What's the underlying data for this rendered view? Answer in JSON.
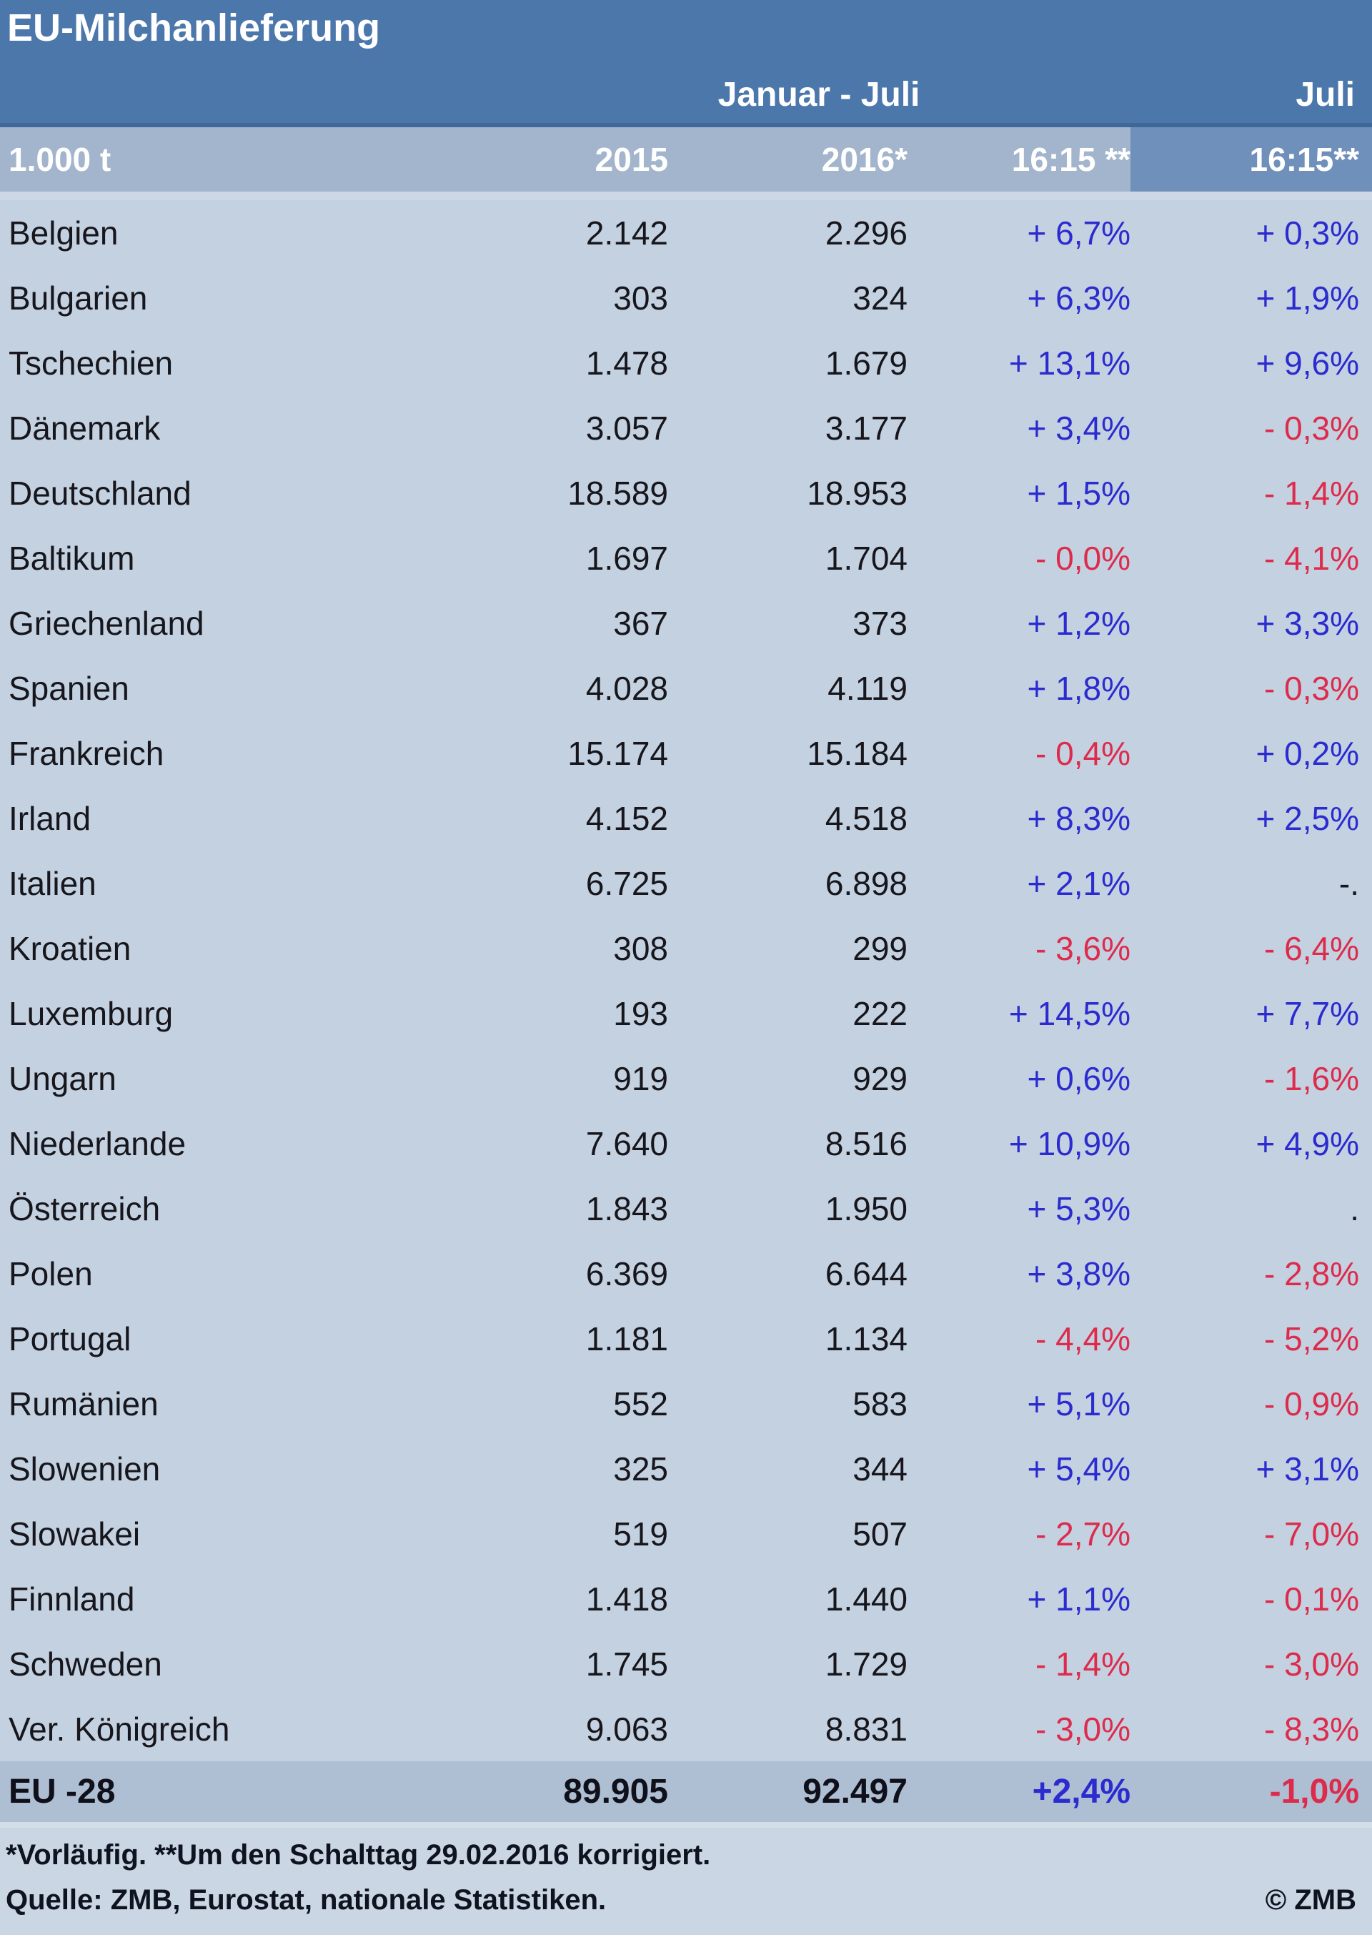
{
  "title": "EU-Milchanlieferung",
  "header": {
    "group_janjul": "Januar - Juli",
    "group_juli": "Juli",
    "unit": "1.000 t",
    "col_2015": "2015",
    "col_2016": "2016*",
    "col_ratio_ytd": "16:15 **",
    "col_ratio_july": "16:15**"
  },
  "chart_data": {
    "type": "table",
    "title": "EU-Milchanlieferung",
    "unit": "1.000 t",
    "column_groups": [
      "Januar - Juli",
      "Juli"
    ],
    "columns": [
      "1.000 t",
      "2015",
      "2016*",
      "16:15 **",
      "16:15**"
    ],
    "rows": [
      [
        "Belgien",
        "2.142",
        "2.296",
        "+ 6,7%",
        "+ 0,3%"
      ],
      [
        "Bulgarien",
        "303",
        "324",
        "+ 6,3%",
        "+ 1,9%"
      ],
      [
        "Tschechien",
        "1.478",
        "1.679",
        "+ 13,1%",
        "+ 9,6%"
      ],
      [
        "Dänemark",
        "3.057",
        "3.177",
        "+ 3,4%",
        "- 0,3%"
      ],
      [
        "Deutschland",
        "18.589",
        "18.953",
        "+ 1,5%",
        "- 1,4%"
      ],
      [
        "Baltikum",
        "1.697",
        "1.704",
        "- 0,0%",
        "- 4,1%"
      ],
      [
        "Griechenland",
        "367",
        "373",
        "+ 1,2%",
        "+ 3,3%"
      ],
      [
        "Spanien",
        "4.028",
        "4.119",
        "+ 1,8%",
        "- 0,3%"
      ],
      [
        "Frankreich",
        "15.174",
        "15.184",
        "- 0,4%",
        "+ 0,2%"
      ],
      [
        "Irland",
        "4.152",
        "4.518",
        "+ 8,3%",
        "+ 2,5%"
      ],
      [
        "Italien",
        "6.725",
        "6.898",
        "+ 2,1%",
        "-."
      ],
      [
        "Kroatien",
        "308",
        "299",
        "- 3,6%",
        "- 6,4%"
      ],
      [
        "Luxemburg",
        "193",
        "222",
        "+ 14,5%",
        "+ 7,7%"
      ],
      [
        "Ungarn",
        "919",
        "929",
        "+ 0,6%",
        "- 1,6%"
      ],
      [
        "Niederlande",
        "7.640",
        "8.516",
        "+ 10,9%",
        "+ 4,9%"
      ],
      [
        "Österreich",
        "1.843",
        "1.950",
        "+ 5,3%",
        "."
      ],
      [
        "Polen",
        "6.369",
        "6.644",
        "+ 3,8%",
        "- 2,8%"
      ],
      [
        "Portugal",
        "1.181",
        "1.134",
        "- 4,4%",
        "- 5,2%"
      ],
      [
        "Rumänien",
        "552",
        "583",
        "+ 5,1%",
        "- 0,9%"
      ],
      [
        "Slowenien",
        "325",
        "344",
        "+ 5,4%",
        "+ 3,1%"
      ],
      [
        "Slowakei",
        "519",
        "507",
        "- 2,7%",
        "- 7,0%"
      ],
      [
        "Finnland",
        "1.418",
        "1.440",
        "+ 1,1%",
        "- 0,1%"
      ],
      [
        "Schweden",
        "1.745",
        "1.729",
        "- 1,4%",
        "- 3,0%"
      ],
      [
        "Ver. Königreich",
        "9.063",
        "8.831",
        "- 3,0%",
        "- 8,3%"
      ]
    ],
    "total": [
      "EU -28",
      "89.905",
      "92.497",
      "+2,4%",
      "-1,0%"
    ]
  },
  "footer": {
    "footnote": "*Vorläufig. **Um den Schalttag 29.02.2016 korrigiert.",
    "source": "Quelle: ZMB, Eurostat, nationale Statistiken.",
    "copyright": "© ZMB"
  },
  "colors": {
    "header_band": "#4c77ab",
    "subheader_bg": "#a3b5cc",
    "subheader_lastcol_bg": "#7090bc",
    "body_bg": "#c4d1e0",
    "total_row_bg": "#aebfd3",
    "footer_bg": "#cad6e3",
    "positive_blue": "#2b2bd0",
    "negative_red": "#dd2b4c",
    "header_text": "#ffffff",
    "body_text": "#16161c"
  }
}
